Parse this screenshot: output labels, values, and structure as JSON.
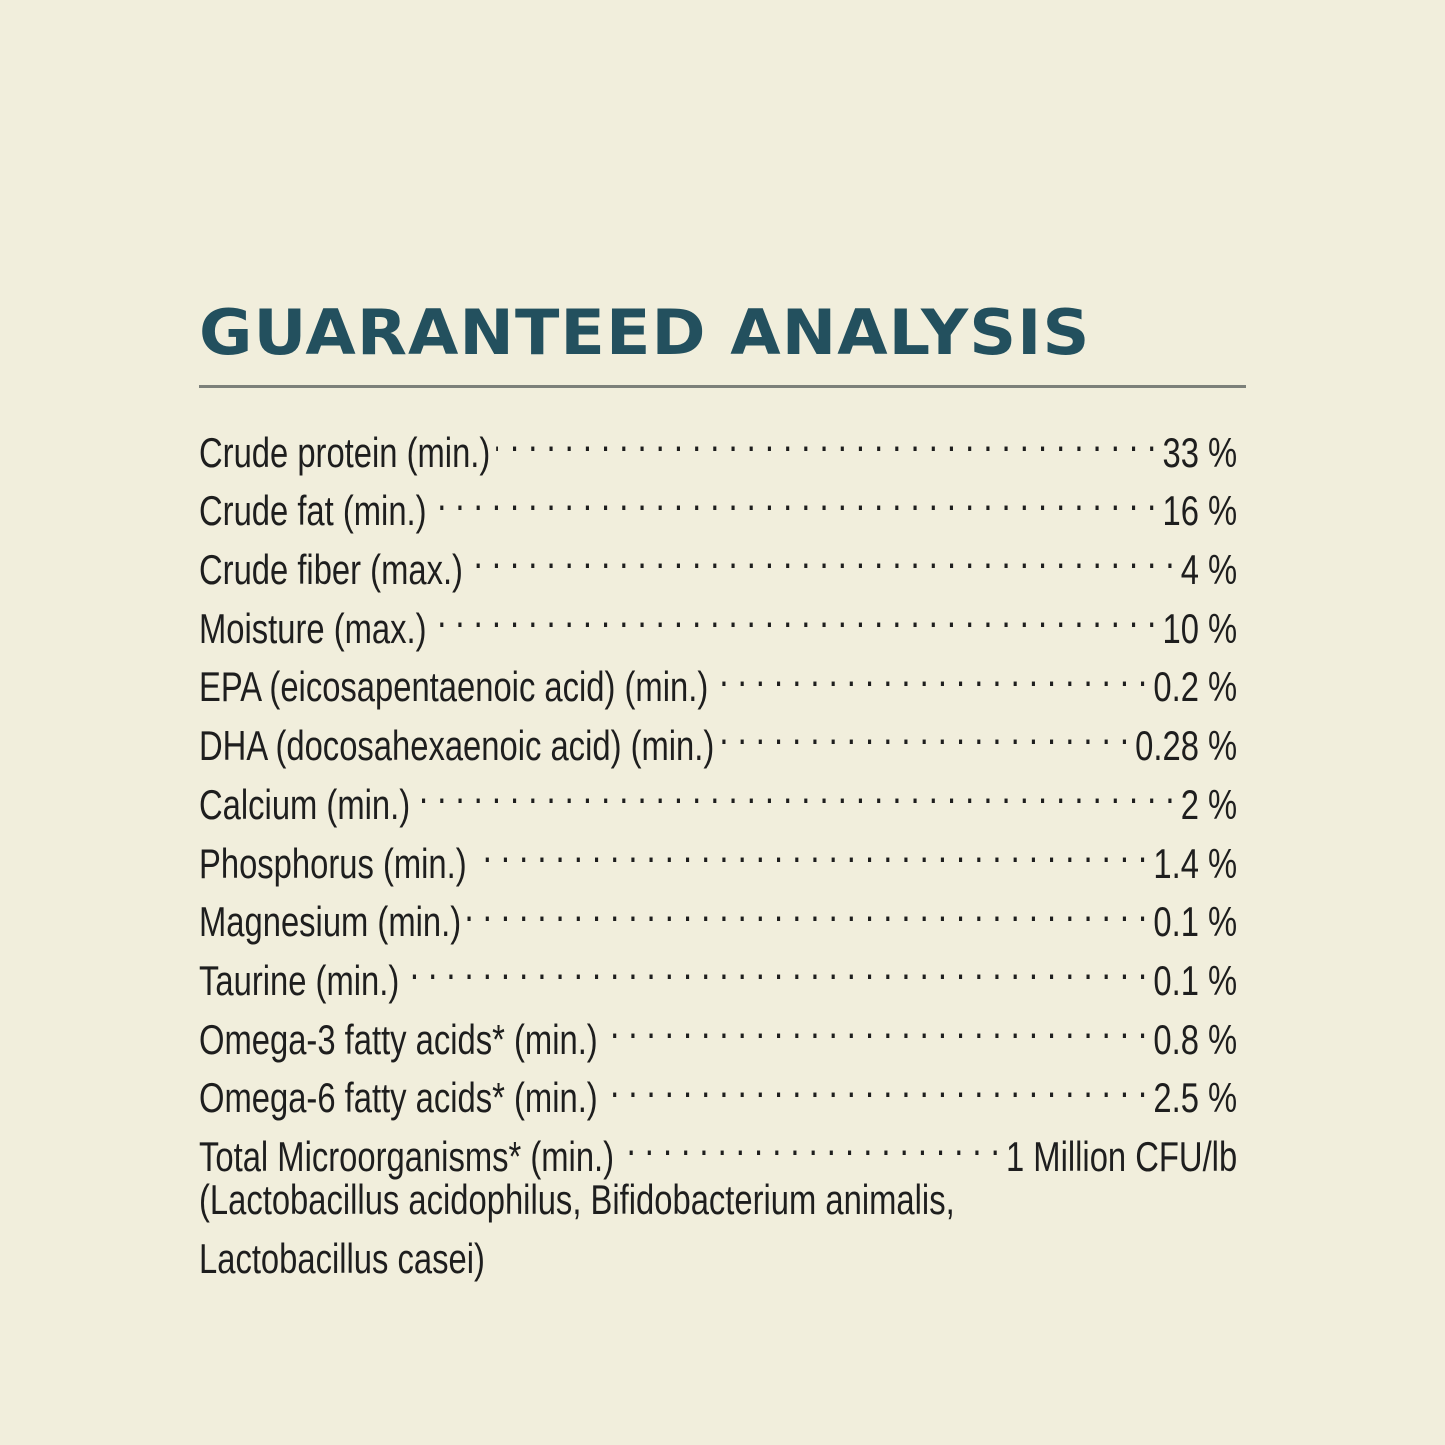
{
  "title": "GUARANTEED ANALYSIS",
  "rows": [
    {
      "label": "Crude protein (min.)",
      "value": "33 %"
    },
    {
      "label": "Crude fat (min.)",
      "value": "16 %"
    },
    {
      "label": "Crude fiber (max.)",
      "value": "4 %"
    },
    {
      "label": "Moisture (max.)",
      "value": "10 %"
    },
    {
      "label": "EPA (eicosapentaenoic acid) (min.)",
      "value": "0.2 %"
    },
    {
      "label": "DHA (docosahexaenoic acid) (min.)",
      "value": "0.28 %"
    },
    {
      "label": "Calcium (min.)",
      "value": "2 %"
    },
    {
      "label": "Phosphorus (min.)",
      "value": "1.4 %"
    },
    {
      "label": "Magnesium (min.)",
      "value": "0.1 %"
    },
    {
      "label": "Taurine (min.)",
      "value": "0.1 %"
    },
    {
      "label": "Omega-3 fatty acids* (min.)",
      "value": "0.8 %"
    },
    {
      "label": "Omega-6 fatty acids* (min.)",
      "value": "2.5 %"
    },
    {
      "label": "Total Microorganisms* (min.)",
      "value": "1 Million CFU/lb"
    }
  ],
  "note_lines": [
    "(Lactobacillus acidophilus, Bifidobacterium animalis,",
    "Lactobacillus casei)"
  ],
  "colors": {
    "background": "#f1eedc",
    "title": "#23505e",
    "text": "#1e1e1e",
    "rule": "#7c807a"
  }
}
